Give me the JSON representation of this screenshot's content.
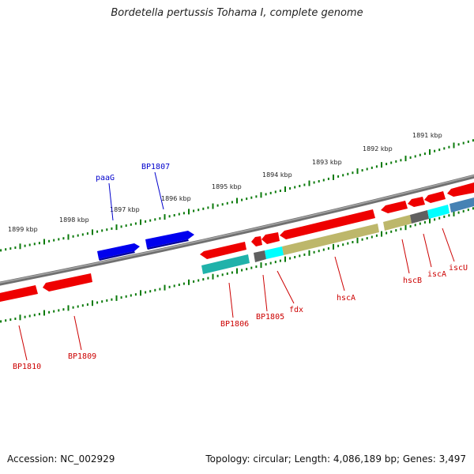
{
  "header": {
    "title": "Bordetella pertussis Tohama I, complete genome"
  },
  "footer": {
    "accession": "Accession: NC_002929",
    "topology": "Topology: circular; Length: 4,086,189 bp; Genes: 3,497"
  },
  "colors": {
    "backbone": "#808080",
    "forward_gene": "#0000ff",
    "reverse_gene": "#ff0000",
    "cyan_feature": "#00ffff",
    "teal_feature": "#20b2aa",
    "khaki_feature": "#bdb76b",
    "gray_feature": "#606060",
    "steel_feature": "#4682b4",
    "scale_ticks": "#006400"
  },
  "scale_labels": [
    "1899 kbp",
    "1898 kbp",
    "1897 kbp",
    "1896 kbp",
    "1895 kbp",
    "1894 kbp",
    "1893 kbp",
    "1892 kbp",
    "1891 kbp"
  ],
  "gene_labels": [
    {
      "text": "paaG",
      "color": "#0000cc"
    },
    {
      "text": "BP1807",
      "color": "#0000cc"
    },
    {
      "text": "BP1810",
      "color": "#cc0000"
    },
    {
      "text": "BP1809",
      "color": "#cc0000"
    },
    {
      "text": "BP1806",
      "color": "#cc0000"
    },
    {
      "text": "BP1805",
      "color": "#cc0000"
    },
    {
      "text": "fdx",
      "color": "#cc0000"
    },
    {
      "text": "hscA",
      "color": "#cc0000"
    },
    {
      "text": "hscB",
      "color": "#cc0000"
    },
    {
      "text": "iscA",
      "color": "#cc0000"
    },
    {
      "text": "iscU",
      "color": "#cc0000"
    }
  ]
}
